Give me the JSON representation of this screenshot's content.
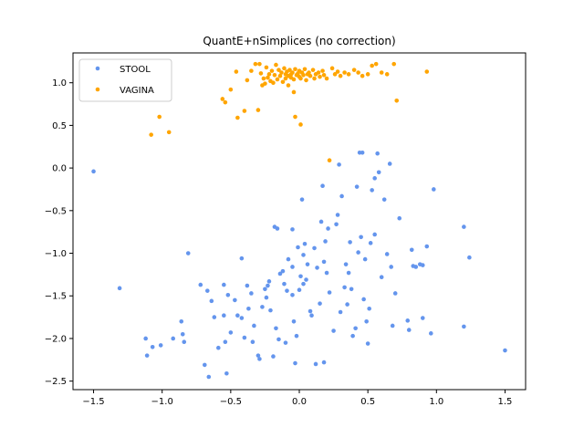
{
  "chart_data": {
    "type": "scatter",
    "title": "QuantE+nSimplices (no correction)",
    "xlabel": "",
    "ylabel": "",
    "xlim": [
      -1.65,
      1.65
    ],
    "ylim": [
      -2.6,
      1.35
    ],
    "xticks": [
      -1.5,
      -1.0,
      -0.5,
      0.0,
      0.5,
      1.0,
      1.5
    ],
    "xtick_labels": [
      "−1.5",
      "−1.0",
      "−0.5",
      "0.0",
      "0.5",
      "1.0",
      "1.5"
    ],
    "yticks": [
      -2.5,
      -2.0,
      -1.5,
      -1.0,
      -0.5,
      0.0,
      0.5,
      1.0
    ],
    "ytick_labels": [
      "−2.5",
      "−2.0",
      "−1.5",
      "−1.0",
      "−0.5",
      "0.0",
      "0.5",
      "1.0"
    ],
    "grid": false,
    "legend_position": "top-left",
    "series": [
      {
        "name": "STOOL",
        "color": "#6495ed",
        "points": [
          [
            -1.5,
            -0.04
          ],
          [
            -1.31,
            -1.41
          ],
          [
            -1.12,
            -2.0
          ],
          [
            -1.11,
            -2.2
          ],
          [
            -1.07,
            -2.1
          ],
          [
            -1.01,
            -2.08
          ],
          [
            -0.92,
            -2.0
          ],
          [
            -0.86,
            -1.8
          ],
          [
            -0.85,
            -1.95
          ],
          [
            -0.84,
            -2.04
          ],
          [
            -0.81,
            -1.0
          ],
          [
            -0.72,
            -1.37
          ],
          [
            -0.69,
            -2.31
          ],
          [
            -0.67,
            -1.44
          ],
          [
            -0.66,
            -2.45
          ],
          [
            -0.64,
            -1.56
          ],
          [
            -0.62,
            -1.75
          ],
          [
            -0.59,
            -2.11
          ],
          [
            -0.55,
            -1.37
          ],
          [
            -0.55,
            -1.73
          ],
          [
            -0.54,
            -2.04
          ],
          [
            -0.53,
            -2.41
          ],
          [
            -0.52,
            -1.49
          ],
          [
            -0.5,
            -1.93
          ],
          [
            -0.47,
            -1.55
          ],
          [
            -0.45,
            -1.73
          ],
          [
            -0.42,
            -1.06
          ],
          [
            -0.42,
            -1.76
          ],
          [
            -0.4,
            -1.99
          ],
          [
            -0.38,
            -1.38
          ],
          [
            -0.37,
            -1.65
          ],
          [
            -0.35,
            -1.47
          ],
          [
            -0.34,
            -2.04
          ],
          [
            -0.33,
            -1.85
          ],
          [
            -0.3,
            -2.2
          ],
          [
            -0.29,
            -2.24
          ],
          [
            -0.27,
            -1.63
          ],
          [
            -0.25,
            -1.42
          ],
          [
            -0.24,
            -1.52
          ],
          [
            -0.23,
            -1.38
          ],
          [
            -0.22,
            -1.33
          ],
          [
            -0.21,
            -1.67
          ],
          [
            -0.19,
            -2.21
          ],
          [
            -0.18,
            -0.69
          ],
          [
            -0.17,
            -1.88
          ],
          [
            -0.16,
            -0.71
          ],
          [
            -0.15,
            -2.01
          ],
          [
            -0.14,
            -1.24
          ],
          [
            -0.12,
            -1.21
          ],
          [
            -0.11,
            -1.36
          ],
          [
            -0.1,
            -2.05
          ],
          [
            -0.09,
            -1.44
          ],
          [
            -0.08,
            -1.07
          ],
          [
            -0.05,
            -0.72
          ],
          [
            -0.05,
            -1.49
          ],
          [
            -0.05,
            -1.16
          ],
          [
            -0.04,
            -1.8
          ],
          [
            -0.03,
            -2.29
          ],
          [
            -0.02,
            -1.97
          ],
          [
            -0.01,
            -0.93
          ],
          [
            0.0,
            -1.43
          ],
          [
            0.01,
            -1.27
          ],
          [
            0.02,
            -0.37
          ],
          [
            0.03,
            -1.02
          ],
          [
            0.03,
            -1.36
          ],
          [
            0.04,
            -0.89
          ],
          [
            0.05,
            -1.31
          ],
          [
            0.06,
            -1.13
          ],
          [
            0.08,
            -1.68
          ],
          [
            0.09,
            -1.73
          ],
          [
            0.11,
            -0.94
          ],
          [
            0.12,
            -2.3
          ],
          [
            0.13,
            -1.17
          ],
          [
            0.15,
            -1.59
          ],
          [
            0.16,
            -0.63
          ],
          [
            0.17,
            -0.21
          ],
          [
            0.18,
            -1.1
          ],
          [
            0.18,
            -2.28
          ],
          [
            0.19,
            -0.86
          ],
          [
            0.2,
            -1.23
          ],
          [
            0.21,
            -0.71
          ],
          [
            0.22,
            -1.46
          ],
          [
            0.25,
            -1.91
          ],
          [
            0.27,
            -0.66
          ],
          [
            0.28,
            -0.55
          ],
          [
            0.29,
            0.04
          ],
          [
            0.3,
            -1.69
          ],
          [
            0.31,
            -0.33
          ],
          [
            0.33,
            -1.4
          ],
          [
            0.34,
            -1.13
          ],
          [
            0.35,
            -1.6
          ],
          [
            0.36,
            -1.23
          ],
          [
            0.37,
            -0.87
          ],
          [
            0.38,
            -1.42
          ],
          [
            0.39,
            -1.97
          ],
          [
            0.41,
            -1.88
          ],
          [
            0.42,
            -0.22
          ],
          [
            0.43,
            -0.99
          ],
          [
            0.44,
            0.18
          ],
          [
            0.45,
            -0.81
          ],
          [
            0.46,
            0.18
          ],
          [
            0.47,
            -1.54
          ],
          [
            0.48,
            -1.07
          ],
          [
            0.49,
            -1.8
          ],
          [
            0.5,
            -2.06
          ],
          [
            0.51,
            -1.65
          ],
          [
            0.52,
            -0.88
          ],
          [
            0.53,
            -0.26
          ],
          [
            0.55,
            -0.12
          ],
          [
            0.55,
            -0.78
          ],
          [
            0.57,
            0.17
          ],
          [
            0.58,
            -0.05
          ],
          [
            0.6,
            -1.28
          ],
          [
            0.62,
            -0.37
          ],
          [
            0.64,
            -1.01
          ],
          [
            0.66,
            0.05
          ],
          [
            0.67,
            -1.16
          ],
          [
            0.68,
            -1.85
          ],
          [
            0.7,
            -1.47
          ],
          [
            0.73,
            -0.59
          ],
          [
            0.79,
            -1.79
          ],
          [
            0.8,
            -1.9
          ],
          [
            0.82,
            -0.96
          ],
          [
            0.83,
            -1.15
          ],
          [
            0.85,
            -1.16
          ],
          [
            0.88,
            -1.13
          ],
          [
            0.9,
            -1.14
          ],
          [
            0.9,
            -1.76
          ],
          [
            0.93,
            -0.92
          ],
          [
            0.96,
            -1.94
          ],
          [
            0.98,
            -0.25
          ],
          [
            1.2,
            -0.69
          ],
          [
            1.2,
            -1.86
          ],
          [
            1.24,
            -1.05
          ],
          [
            1.5,
            -2.14
          ]
        ]
      },
      {
        "name": "VAGINA",
        "color": "#ffa500",
        "points": [
          [
            -1.08,
            0.39
          ],
          [
            -1.02,
            0.6
          ],
          [
            -0.95,
            0.42
          ],
          [
            -0.56,
            0.81
          ],
          [
            -0.54,
            0.77
          ],
          [
            -0.5,
            0.92
          ],
          [
            -0.46,
            1.13
          ],
          [
            -0.45,
            0.59
          ],
          [
            -0.4,
            0.67
          ],
          [
            -0.38,
            1.03
          ],
          [
            -0.35,
            1.14
          ],
          [
            -0.32,
            1.22
          ],
          [
            -0.3,
            0.68
          ],
          [
            -0.29,
            1.22
          ],
          [
            -0.28,
            1.11
          ],
          [
            -0.27,
            0.97
          ],
          [
            -0.26,
            1.05
          ],
          [
            -0.25,
            0.99
          ],
          [
            -0.24,
            1.18
          ],
          [
            -0.23,
            1.06
          ],
          [
            -0.22,
            1.1
          ],
          [
            -0.21,
            1.02
          ],
          [
            -0.2,
            1.14
          ],
          [
            -0.19,
            1.0
          ],
          [
            -0.18,
            1.09
          ],
          [
            -0.17,
            1.21
          ],
          [
            -0.16,
            1.04
          ],
          [
            -0.15,
            1.15
          ],
          [
            -0.14,
            1.08
          ],
          [
            -0.13,
            1.12
          ],
          [
            -0.12,
            1.01
          ],
          [
            -0.11,
            1.17
          ],
          [
            -0.1,
            1.1
          ],
          [
            -0.1,
            1.05
          ],
          [
            -0.09,
            1.13
          ],
          [
            -0.08,
            1.08
          ],
          [
            -0.08,
            0.97
          ],
          [
            -0.07,
            1.15
          ],
          [
            -0.06,
            1.06
          ],
          [
            -0.06,
            1.1
          ],
          [
            -0.05,
            1.12
          ],
          [
            -0.04,
            1.04
          ],
          [
            -0.04,
            0.89
          ],
          [
            -0.03,
            0.6
          ],
          [
            -0.03,
            1.16
          ],
          [
            -0.02,
            1.09
          ],
          [
            -0.01,
            1.11
          ],
          [
            0.0,
            1.07
          ],
          [
            0.0,
            1.14
          ],
          [
            0.01,
            1.05
          ],
          [
            0.01,
            0.51
          ],
          [
            0.02,
            1.12
          ],
          [
            0.03,
            1.09
          ],
          [
            0.04,
            1.16
          ],
          [
            0.05,
            1.03
          ],
          [
            0.06,
            1.1
          ],
          [
            0.07,
            1.12
          ],
          [
            0.08,
            1.08
          ],
          [
            0.1,
            1.15
          ],
          [
            0.11,
            1.05
          ],
          [
            0.12,
            1.1
          ],
          [
            0.14,
            1.12
          ],
          [
            0.15,
            1.07
          ],
          [
            0.17,
            1.14
          ],
          [
            0.18,
            1.09
          ],
          [
            0.2,
            1.05
          ],
          [
            0.22,
            0.09
          ],
          [
            0.24,
            1.17
          ],
          [
            0.26,
            1.1
          ],
          [
            0.28,
            1.13
          ],
          [
            0.3,
            1.08
          ],
          [
            0.33,
            1.12
          ],
          [
            0.36,
            1.1
          ],
          [
            0.4,
            1.15
          ],
          [
            0.43,
            1.12
          ],
          [
            0.46,
            1.08
          ],
          [
            0.5,
            1.1
          ],
          [
            0.53,
            1.2
          ],
          [
            0.56,
            1.22
          ],
          [
            0.6,
            1.12
          ],
          [
            0.64,
            1.1
          ],
          [
            0.69,
            1.22
          ],
          [
            0.71,
            0.79
          ],
          [
            0.93,
            1.13
          ]
        ]
      }
    ]
  }
}
